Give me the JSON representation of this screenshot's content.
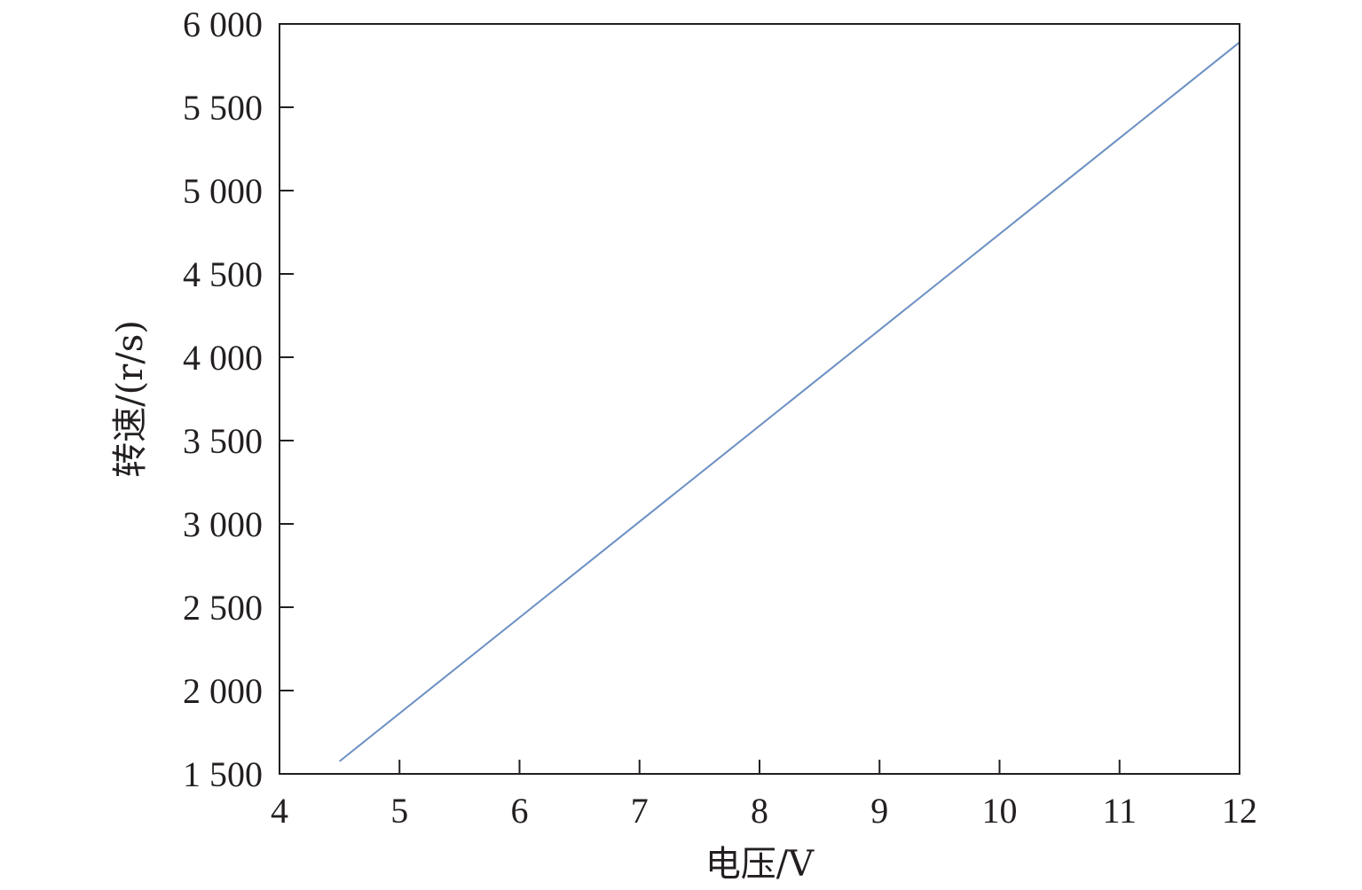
{
  "chart_data": {
    "type": "line",
    "title": "",
    "xlabel": "电压/V",
    "ylabel": "转速/(r/s)",
    "xlim": [
      4,
      12
    ],
    "ylim": [
      1500,
      6000
    ],
    "xticks": [
      4,
      5,
      6,
      7,
      8,
      9,
      10,
      11,
      12
    ],
    "xtick_labels": [
      "4",
      "5",
      "6",
      "7",
      "8",
      "9",
      "10",
      "11",
      "12"
    ],
    "yticks": [
      1500,
      2000,
      2500,
      3000,
      3500,
      4000,
      4500,
      5000,
      5500,
      6000
    ],
    "ytick_labels": [
      "1 500",
      "2 000",
      "2 500",
      "3 000",
      "3 500",
      "4 000",
      "4 500",
      "5 000",
      "5 500",
      "6 000"
    ],
    "grid": false,
    "legend": "none",
    "series": [
      {
        "color": "#6b8fc3",
        "x": [
          4.5,
          12
        ],
        "y": [
          1575,
          5890
        ]
      }
    ]
  }
}
